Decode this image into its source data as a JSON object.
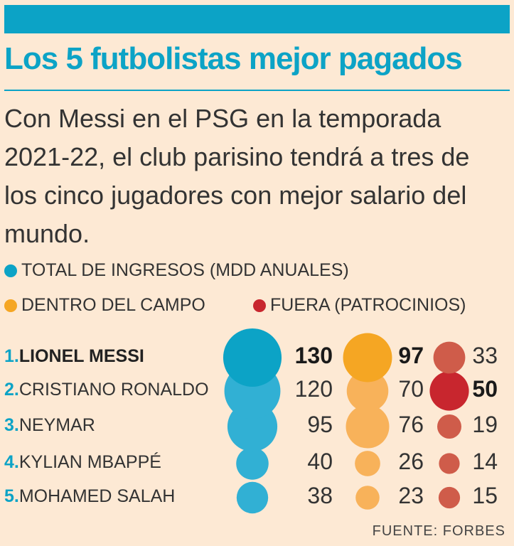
{
  "title": "Los 5 futbolistas mejor pagados",
  "subtitle": "Con Messi en el PSG en la temporada 2021-22, el club parisino tendrá a tres de los cinco jugadores con mejor salario del mundo.",
  "source": "FUENTE: FORBES",
  "colors": {
    "total": "#0ca3c6",
    "on_field": "#f5a623",
    "off_field": "#c8262e"
  },
  "chart_data": {
    "type": "bubble_table",
    "title": "Los 5 futbolistas mejor pagados",
    "legend": [
      {
        "key": "total",
        "label": "TOTAL DE INGRESOS (MDD ANUALES)"
      },
      {
        "key": "on_field",
        "label": "DENTRO DEL CAMPO"
      },
      {
        "key": "off_field",
        "label": "FUERA (PATROCINIOS)"
      }
    ],
    "players": [
      {
        "rank": "1.",
        "name": "LIONEL MESSI",
        "total": 130,
        "on_field": 97,
        "off_field": 33
      },
      {
        "rank": "2.",
        "name": "CRISTIANO RONALDO",
        "total": 120,
        "on_field": 70,
        "off_field": 50
      },
      {
        "rank": "3.",
        "name": "NEYMAR",
        "total": 95,
        "on_field": 76,
        "off_field": 19
      },
      {
        "rank": "4.",
        "name": "KYLIAN MBAPPÉ",
        "total": 40,
        "on_field": 26,
        "off_field": 14
      },
      {
        "rank": "5.",
        "name": "MOHAMED SALAH",
        "total": 38,
        "on_field": 23,
        "off_field": 15
      }
    ]
  }
}
